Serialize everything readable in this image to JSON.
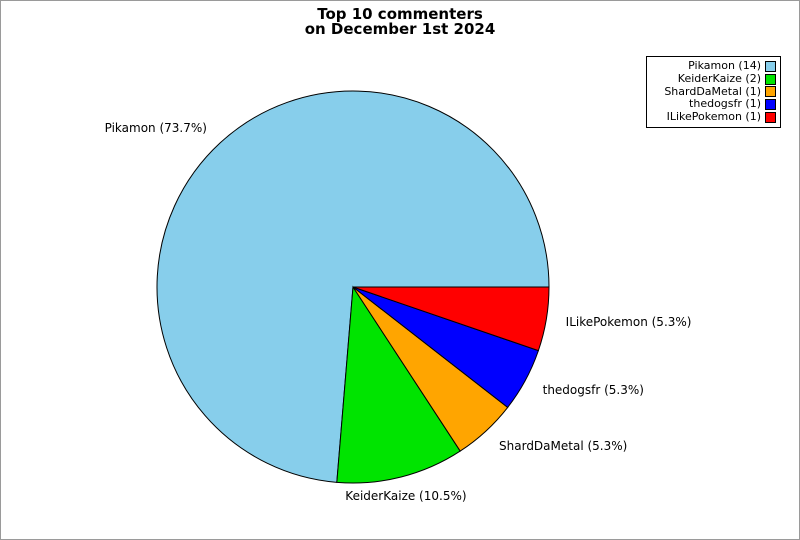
{
  "title": {
    "line1": "Top 10 commenters",
    "line2": "on December 1st 2024"
  },
  "chart_data": {
    "type": "pie",
    "title": "Top 10 commenters on December 1st 2024",
    "categories": [
      "Pikamon",
      "KeiderKaize",
      "ShardDaMetal",
      "thedogsfr",
      "ILikePokemon"
    ],
    "values": [
      14,
      2,
      1,
      1,
      1
    ],
    "percentages": [
      73.7,
      10.5,
      5.3,
      5.3,
      5.3
    ],
    "slice_labels": [
      "Pikamon (73.7%)",
      "KeiderKaize (10.5%)",
      "ShardDaMetal (5.3%)",
      "thedogsfr (5.3%)",
      "ILikePokemon (5.3%)"
    ],
    "legend_labels": [
      "Pikamon (14)",
      "KeiderKaize (2)",
      "ShardDaMetal (1)",
      "thedogsfr (1)",
      "ILikePokemon (1)"
    ],
    "colors": [
      "#87CEEB",
      "#00E400",
      "#FFA500",
      "#0000FF",
      "#FF0000"
    ],
    "edge_color": "#000000",
    "start_angle_deg": 0,
    "direction": "counterclockwise",
    "legend_position": "upper-right"
  }
}
